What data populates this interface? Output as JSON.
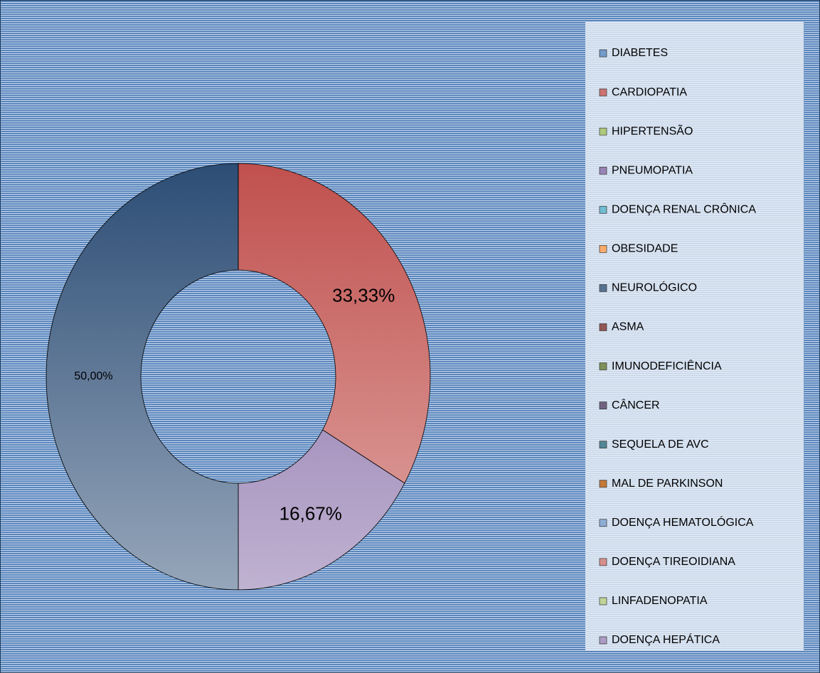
{
  "chart_data": {
    "type": "donut",
    "categories": [
      "DIABETES",
      "CARDIOPATIA",
      "HIPERTENSÃO",
      "PNEUMOPATIA",
      "DOENÇA RENAL CRÔNICA",
      "OBESIDADE",
      "NEUROLÓGICO",
      "ASMA",
      "IMUNODEFICIÊNCIA",
      "CÂNCER",
      "SEQUELA DE AVC",
      "MAL DE PARKINSON",
      "DOENÇA HEMATOLÓGICA",
      "DOENÇA TIREOIDIANA",
      "LINFADENOPATIA",
      "DOENÇA HEPÁTICA"
    ],
    "values": [
      0,
      33.33,
      0,
      16.67,
      0,
      0,
      50,
      0,
      0,
      0,
      0,
      0,
      0,
      0,
      0,
      0
    ],
    "value_labels": [
      null,
      "33,33%",
      null,
      "16,67%",
      null,
      null,
      "50,00%",
      null,
      null,
      null,
      null,
      null,
      null,
      null,
      null,
      null
    ],
    "colors": [
      "#4F81BD",
      "#C0504D",
      "#9BBB59",
      "#8064A2",
      "#4BACC6",
      "#F79646",
      "#2C4D75",
      "#772C2A",
      "#5F7530",
      "#4D3B62",
      "#276A7C",
      "#B65708",
      "#729ACA",
      "#CD7371",
      "#AFC97A",
      "#9983B5"
    ],
    "legend": "right"
  }
}
